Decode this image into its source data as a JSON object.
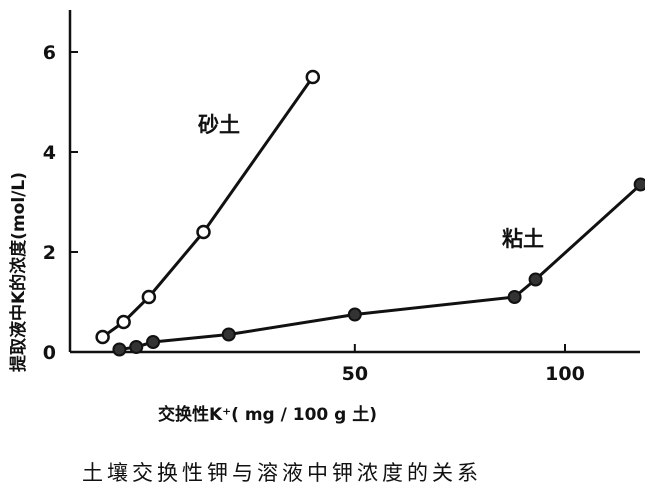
{
  "chart_data": {
    "type": "line",
    "xlabel": "交换性K⁺( mg / 100 g 土)",
    "ylabel": "提取液中K的浓度(mol/L)",
    "caption": "土壤交换性钾与溶液中钾浓度的关系",
    "xlim": [
      -18,
      120
    ],
    "ylim": [
      0,
      7
    ],
    "x_ticks": [
      50,
      100
    ],
    "x_tick_labels": [
      "50",
      "100"
    ],
    "y_ticks": [
      0,
      2,
      4,
      6
    ],
    "y_tick_labels": [
      "0",
      "2",
      "4",
      "6"
    ],
    "series": [
      {
        "name": "砂土",
        "marker": "open-circle",
        "x": [
          -10,
          -5,
          1,
          14,
          40
        ],
        "y": [
          0.3,
          0.6,
          1.1,
          2.4,
          5.5
        ]
      },
      {
        "name": "粘土",
        "marker": "filled-circle",
        "x": [
          -6,
          -2,
          2,
          20,
          50,
          88,
          93,
          118
        ],
        "y": [
          0.05,
          0.1,
          0.2,
          0.35,
          0.75,
          1.1,
          1.45,
          3.35
        ]
      }
    ]
  }
}
